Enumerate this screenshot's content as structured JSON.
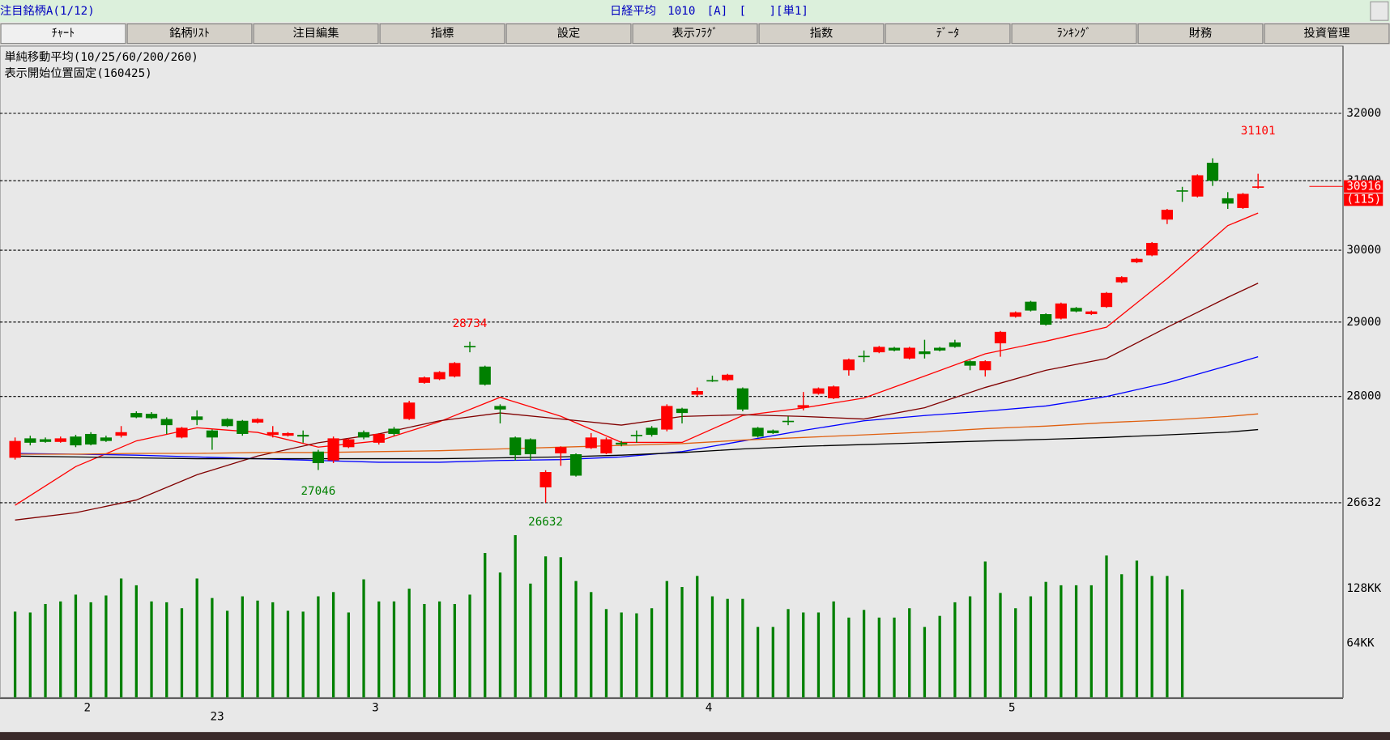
{
  "header": {
    "left": "注目銘柄A(1/12)",
    "center": "日経平均　1010　[A]　[　　][単1]"
  },
  "tabs": [
    "ﾁｬｰﾄ",
    "銘柄ﾘｽﾄ",
    "注目編集",
    "指標",
    "設定",
    "表示ﾌﾗｸﾞ",
    "指数",
    "ﾃﾞｰﾀ",
    "ﾗﾝｷﾝｸﾞ",
    "財務",
    "投資管理"
  ],
  "chart_data": {
    "type": "candlestick",
    "indicator_label": "単純移動平均(10/25/60/200/260)",
    "start_label": "表示開始位置固定(160425)",
    "year_label": "23",
    "change_tag": "(115)",
    "log_scale": true,
    "grid": true,
    "up_color": "#ff0000",
    "down_color": "#008000",
    "ylim": [
      26270,
      32990
    ],
    "yticks": [
      26632,
      28000,
      29000,
      30000,
      31000,
      32000
    ],
    "categories": [
      null,
      null,
      null,
      null,
      null,
      "2",
      null,
      null,
      null,
      null,
      null,
      null,
      null,
      null,
      null,
      null,
      null,
      null,
      null,
      null,
      null,
      null,
      null,
      null,
      "3",
      null,
      null,
      null,
      null,
      null,
      null,
      null,
      null,
      null,
      null,
      null,
      null,
      null,
      null,
      null,
      null,
      null,
      null,
      null,
      null,
      null,
      "4",
      null,
      null,
      null,
      null,
      null,
      null,
      null,
      null,
      null,
      null,
      null,
      null,
      null,
      null,
      null,
      null,
      null,
      null,
      null,
      "5",
      null,
      null,
      null,
      null,
      null,
      null,
      null,
      null,
      null,
      null,
      null,
      null,
      null,
      null,
      null,
      null
    ],
    "open": [
      27202,
      27453,
      27441,
      27407,
      27476,
      27510,
      27464,
      27487,
      27783,
      27772,
      27704,
      27464,
      27738,
      27555,
      27704,
      27681,
      27658,
      27498,
      27487,
      27498,
      27282,
      27168,
      27339,
      27533,
      27396,
      27578,
      27704,
      28181,
      28229,
      28265,
      28675,
      28398,
      27875,
      27464,
      27441,
      26826,
      27259,
      27248,
      27327,
      27259,
      27396,
      27498,
      27590,
      27567,
      27840,
      28024,
      28217,
      28217,
      28108,
      27590,
      27555,
      27681,
      27852,
      28036,
      27977,
      28349,
      28542,
      28590,
      28651,
      28506,
      28602,
      28651,
      28723,
      28470,
      28349,
      28711,
      29073,
      29280,
      29109,
      29048,
      29195,
      29109,
      29207,
      29549,
      29829,
      29927,
      30436,
      30859,
      30769,
      31263,
      30744,
      30603,
      30897
    ],
    "high": [
      27464,
      27487,
      27464,
      27476,
      27498,
      27533,
      27487,
      27612,
      27805,
      27795,
      27726,
      27601,
      27818,
      27567,
      27715,
      27692,
      27715,
      27612,
      27533,
      27555,
      27305,
      27476,
      27453,
      27555,
      27521,
      27601,
      27943,
      28265,
      28337,
      28458,
      28734,
      28410,
      27897,
      27476,
      27453,
      27043,
      27350,
      27259,
      27521,
      27464,
      27419,
      27555,
      27612,
      27897,
      27852,
      28120,
      28277,
      28301,
      28120,
      27601,
      27567,
      27738,
      28060,
      28120,
      28145,
      28506,
      28614,
      28675,
      28663,
      28663,
      28759,
      28663,
      28759,
      28482,
      28482,
      28879,
      29146,
      29292,
      29121,
      29268,
      29207,
      29158,
      29414,
      29634,
      29890,
      30116,
      30590,
      30910,
      31092,
      31329,
      30833,
      30821,
      31101
    ],
    "low": [
      27179,
      27362,
      27396,
      27396,
      27339,
      27362,
      27407,
      27464,
      27715,
      27704,
      27510,
      27453,
      27624,
      27305,
      27601,
      27487,
      27647,
      27464,
      27476,
      27396,
      27046,
      27134,
      27327,
      27441,
      27373,
      27487,
      27692,
      28169,
      28217,
      28253,
      28590,
      28145,
      27647,
      27168,
      27168,
      26632,
      27099,
      26962,
      27316,
      27248,
      27350,
      27396,
      27476,
      27544,
      27647,
      28000,
      28193,
      28205,
      27805,
      27464,
      27510,
      27624,
      27818,
      28024,
      27965,
      28277,
      28458,
      28578,
      28602,
      28494,
      28506,
      28602,
      28651,
      28349,
      28265,
      28530,
      29061,
      29146,
      28952,
      29036,
      29134,
      29097,
      29195,
      29537,
      29817,
      29915,
      30372,
      30692,
      30756,
      30923,
      30590,
      30590,
      30884
    ],
    "close": [
      27419,
      27396,
      27407,
      27453,
      27362,
      27373,
      27419,
      27533,
      27726,
      27715,
      27624,
      27590,
      27692,
      27464,
      27612,
      27510,
      27704,
      27533,
      27521,
      27476,
      27134,
      27453,
      27441,
      27464,
      27510,
      27510,
      27920,
      28253,
      28325,
      28446,
      28663,
      28157,
      27829,
      27236,
      27248,
      27020,
      27339,
      26974,
      27464,
      27441,
      27373,
      27487,
      27498,
      27875,
      27783,
      28072,
      28205,
      28289,
      27829,
      27476,
      27521,
      27669,
      27886,
      28108,
      28133,
      28494,
      28530,
      28663,
      28614,
      28651,
      28566,
      28614,
      28663,
      28410,
      28470,
      28867,
      29134,
      29158,
      28964,
      29256,
      29146,
      29146,
      29402,
      29622,
      29878,
      30103,
      30577,
      30846,
      31079,
      31000,
      30667,
      30808,
      30916
    ],
    "moving_averages": [
      {
        "color": "#ff0000",
        "x": [
          0,
          4,
          8,
          12,
          16,
          20,
          24,
          28,
          32,
          36,
          40,
          44,
          48,
          52,
          56,
          60,
          64,
          68,
          72,
          76,
          80,
          82
        ],
        "values": [
          26600,
          27090,
          27420,
          27590,
          27530,
          27340,
          27420,
          27670,
          27990,
          27740,
          27400,
          27400,
          27750,
          27850,
          27980,
          28270,
          28570,
          28740,
          28930,
          29600,
          30350,
          30530
        ]
      },
      {
        "color": "#800000",
        "x": [
          0,
          4,
          8,
          12,
          16,
          20,
          24,
          28,
          32,
          36,
          40,
          44,
          48,
          52,
          56,
          60,
          64,
          68,
          72,
          76,
          80,
          82
        ],
        "values": [
          26415,
          26507,
          26666,
          26985,
          27225,
          27396,
          27510,
          27681,
          27783,
          27704,
          27624,
          27738,
          27760,
          27738,
          27704,
          27852,
          28120,
          28349,
          28506,
          28928,
          29341,
          29537
        ]
      },
      {
        "color": "#0000ff",
        "x": [
          0,
          4,
          8,
          12,
          16,
          20,
          24,
          28,
          32,
          36,
          40,
          44,
          48,
          52,
          56,
          60,
          64,
          68,
          72,
          76,
          80,
          82
        ],
        "values": [
          27259,
          27248,
          27236,
          27213,
          27191,
          27168,
          27145,
          27145,
          27168,
          27179,
          27213,
          27282,
          27419,
          27555,
          27681,
          27749,
          27806,
          27875,
          28000,
          28181,
          28410,
          28530
        ]
      },
      {
        "color": "#e06010",
        "x": [
          0,
          4,
          8,
          12,
          16,
          20,
          24,
          28,
          32,
          36,
          40,
          44,
          48,
          52,
          56,
          60,
          64,
          68,
          72,
          76,
          80,
          82
        ],
        "values": [
          27248,
          27248,
          27259,
          27259,
          27270,
          27270,
          27282,
          27293,
          27316,
          27339,
          27362,
          27384,
          27430,
          27464,
          27498,
          27533,
          27578,
          27612,
          27658,
          27692,
          27738,
          27772
        ]
      },
      {
        "color": "#000000",
        "x": [
          0,
          4,
          8,
          12,
          16,
          20,
          24,
          28,
          32,
          36,
          40,
          44,
          48,
          52,
          56,
          60,
          64,
          68,
          72,
          76,
          80,
          82
        ],
        "values": [
          27225,
          27213,
          27202,
          27191,
          27191,
          27191,
          27191,
          27191,
          27202,
          27213,
          27236,
          27270,
          27316,
          27350,
          27373,
          27396,
          27419,
          27441,
          27464,
          27498,
          27533,
          27567
        ]
      }
    ],
    "volume": {
      "color": "#008000",
      "ylim": [
        0,
        195
      ],
      "yticks": [
        {
          "value": 64,
          "label": "64KK"
        },
        {
          "value": 128,
          "label": "128KK"
        }
      ],
      "values": [
        101,
        100,
        110,
        113,
        121,
        112,
        120,
        140,
        132,
        113,
        112,
        105,
        140,
        117,
        102,
        119,
        114,
        112,
        102,
        101,
        119,
        124,
        100,
        139,
        113,
        113,
        128,
        110,
        113,
        110,
        121,
        170,
        147,
        191,
        134,
        166,
        165,
        137,
        124,
        104,
        100,
        99,
        105,
        137,
        130,
        143,
        119,
        116,
        116,
        83,
        83,
        104,
        100,
        100,
        113,
        94,
        103,
        94,
        94,
        105,
        83,
        96,
        112,
        119,
        160,
        123,
        105,
        119,
        136,
        132,
        132,
        132,
        167,
        145,
        161,
        143,
        143,
        127,
        null,
        null,
        null,
        null,
        null
      ]
    }
  }
}
